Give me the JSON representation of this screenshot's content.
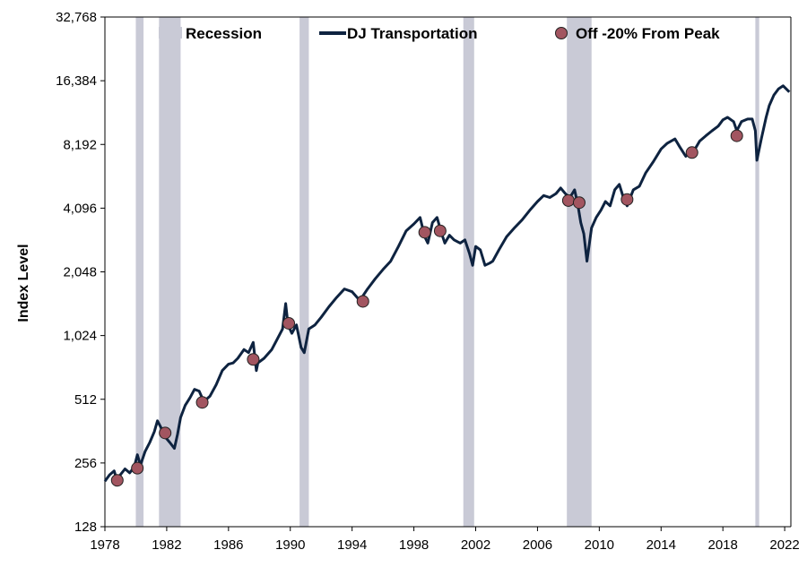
{
  "colors": {
    "line": "#0e2340",
    "recession": "#c9cad6",
    "marker_fill": "#a25560",
    "marker_stroke": "#222222",
    "axis": "#000000"
  },
  "chart_data": {
    "type": "line",
    "ylabel": "Index Level",
    "y_scale": "log2",
    "ylim": [
      128,
      32768
    ],
    "xlim": [
      1978,
      2022.4
    ],
    "x_ticks": [
      1978,
      1982,
      1986,
      1990,
      1994,
      1998,
      2002,
      2006,
      2010,
      2014,
      2018,
      2022
    ],
    "x_tick_labels": [
      "1978",
      "1982",
      "1986",
      "1990",
      "1994",
      "1998",
      "2002",
      "2006",
      "2010",
      "2014",
      "2018",
      "2022"
    ],
    "y_ticks": [
      128,
      256,
      512,
      1024,
      2048,
      4096,
      8192,
      16384,
      32768
    ],
    "y_tick_labels": [
      "128",
      "256",
      "512",
      "1,024",
      "2,048",
      "4,096",
      "8,192",
      "16,384",
      "32,768"
    ],
    "legend": {
      "placement": "top",
      "items": [
        {
          "label": "Recession",
          "kind": "band"
        },
        {
          "label": "DJ Transportation",
          "kind": "line"
        },
        {
          "label": "Off -20% From Peak",
          "kind": "marker"
        }
      ]
    },
    "recessions": [
      {
        "start": 1980.0,
        "end": 1980.5
      },
      {
        "start": 1981.5,
        "end": 1982.9
      },
      {
        "start": 1990.6,
        "end": 1991.2
      },
      {
        "start": 2001.2,
        "end": 2001.9
      },
      {
        "start": 2007.9,
        "end": 2009.5
      },
      {
        "start": 2020.1,
        "end": 2020.35
      }
    ],
    "series": [
      {
        "name": "DJ Transportation",
        "x": [
          1978.0,
          1978.3,
          1978.6,
          1978.8,
          1979.0,
          1979.3,
          1979.6,
          1979.9,
          1980.1,
          1980.3,
          1980.6,
          1980.9,
          1981.2,
          1981.4,
          1981.6,
          1981.9,
          1982.2,
          1982.5,
          1982.7,
          1982.9,
          1983.2,
          1983.5,
          1983.8,
          1984.1,
          1984.4,
          1984.8,
          1985.2,
          1985.6,
          1986.0,
          1986.3,
          1986.6,
          1987.0,
          1987.3,
          1987.6,
          1987.8,
          1987.9,
          1988.3,
          1988.8,
          1989.2,
          1989.5,
          1989.7,
          1989.85,
          1990.1,
          1990.4,
          1990.7,
          1990.9,
          1991.2,
          1991.6,
          1992.0,
          1992.5,
          1993.0,
          1993.5,
          1994.0,
          1994.5,
          1995.0,
          1995.5,
          1996.0,
          1996.5,
          1997.0,
          1997.5,
          1998.0,
          1998.4,
          1998.7,
          1998.9,
          1999.2,
          1999.5,
          1999.8,
          2000.0,
          2000.3,
          2000.6,
          2001.0,
          2001.3,
          2001.6,
          2001.8,
          2002.0,
          2002.3,
          2002.6,
          2002.9,
          2003.1,
          2003.5,
          2004.0,
          2004.5,
          2005.0,
          2005.5,
          2006.0,
          2006.4,
          2006.8,
          2007.2,
          2007.5,
          2007.8,
          2008.1,
          2008.4,
          2008.6,
          2008.8,
          2009.0,
          2009.2,
          2009.5,
          2009.8,
          2010.1,
          2010.4,
          2010.7,
          2011.0,
          2011.3,
          2011.6,
          2011.8,
          2012.2,
          2012.6,
          2013.0,
          2013.5,
          2014.0,
          2014.4,
          2014.9,
          2015.2,
          2015.6,
          2015.9,
          2016.2,
          2016.5,
          2016.9,
          2017.3,
          2017.7,
          2018.0,
          2018.3,
          2018.7,
          2018.9,
          2019.2,
          2019.6,
          2019.9,
          2020.1,
          2020.2,
          2020.5,
          2020.8,
          2021.0,
          2021.3,
          2021.6,
          2021.9,
          2022.1,
          2022.3
        ],
        "values": [
          210,
          225,
          235,
          210,
          225,
          240,
          230,
          245,
          280,
          250,
          290,
          320,
          360,
          405,
          380,
          340,
          320,
          300,
          350,
          420,
          480,
          520,
          570,
          560,
          500,
          530,
          600,
          700,
          750,
          760,
          800,
          880,
          850,
          950,
          700,
          760,
          800,
          880,
          1000,
          1100,
          1450,
          1150,
          1050,
          1150,
          900,
          850,
          1100,
          1150,
          1250,
          1400,
          1550,
          1700,
          1650,
          1500,
          1700,
          1900,
          2100,
          2300,
          2700,
          3200,
          3450,
          3700,
          3000,
          2800,
          3500,
          3700,
          3100,
          2800,
          3050,
          2900,
          2800,
          2900,
          2500,
          2200,
          2700,
          2600,
          2200,
          2250,
          2300,
          2600,
          3000,
          3300,
          3600,
          4000,
          4400,
          4700,
          4600,
          4800,
          5100,
          4800,
          4600,
          5000,
          4300,
          3500,
          3100,
          2300,
          3300,
          3700,
          4000,
          4400,
          4200,
          5000,
          5300,
          4500,
          4200,
          5000,
          5200,
          6000,
          6800,
          7800,
          8300,
          8700,
          8000,
          7200,
          7600,
          7800,
          8500,
          9000,
          9500,
          10000,
          10700,
          11000,
          10500,
          9500,
          10500,
          10800,
          10800,
          9500,
          6900,
          8800,
          11000,
          12500,
          14000,
          15000,
          15500,
          15000,
          14500
        ]
      }
    ],
    "markers": {
      "name": "Off -20% From Peak",
      "x": [
        1978.8,
        1980.1,
        1981.9,
        1984.3,
        1987.6,
        1989.9,
        1994.7,
        1998.7,
        1999.7,
        2008.0,
        2008.7,
        2011.8,
        2016.0,
        2018.9
      ],
      "values": [
        212,
        242,
        355,
        495,
        790,
        1170,
        1485,
        3150,
        3200,
        4450,
        4350,
        4500,
        7500,
        9000
      ]
    }
  }
}
